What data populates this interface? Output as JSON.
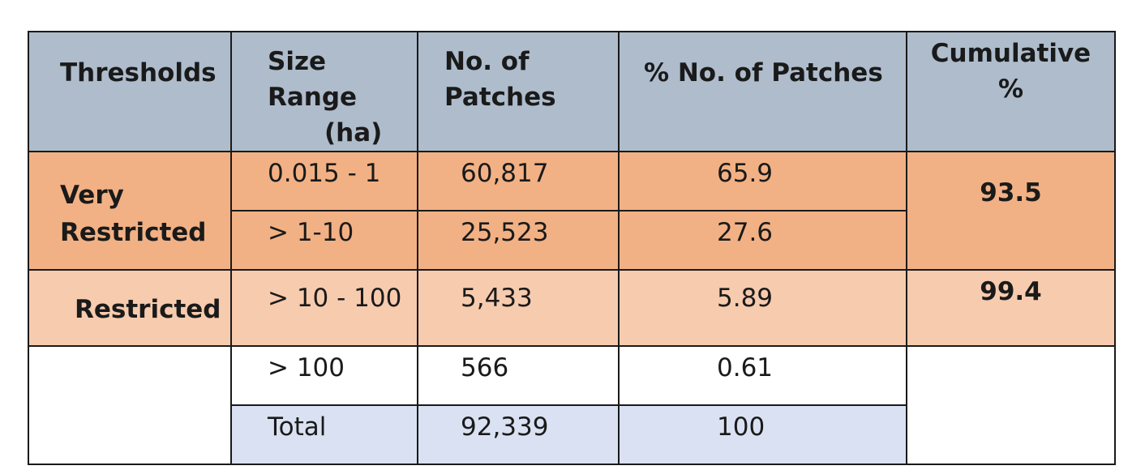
{
  "headers": {
    "thresholds": "Thresholds",
    "size_range_line1": "Size Range",
    "size_range_line2": "(ha)",
    "no_patches_line1": "No. of",
    "no_patches_line2": "Patches",
    "pct_patches": "% No. of Patches",
    "cumulative_line1": "Cumulative",
    "cumulative_line2": "%"
  },
  "groups": {
    "very_restricted_line1": "Very",
    "very_restricted_line2": "Restricted",
    "restricted": "Restricted"
  },
  "rows": [
    {
      "size_range": "0.015 - 1",
      "patches": "60,817",
      "pct": "65.9"
    },
    {
      "size_range": "> 1-10",
      "patches": "25,523",
      "pct": "27.6"
    },
    {
      "size_range": "> 10 - 100",
      "patches": "5,433",
      "pct": "5.89"
    },
    {
      "size_range": "> 100",
      "patches": "566",
      "pct": "0.61"
    },
    {
      "size_range": "Total",
      "patches": "92,339",
      "pct": "100"
    }
  ],
  "cumulative": {
    "very_restricted": "93.5",
    "restricted": "99.4"
  }
}
